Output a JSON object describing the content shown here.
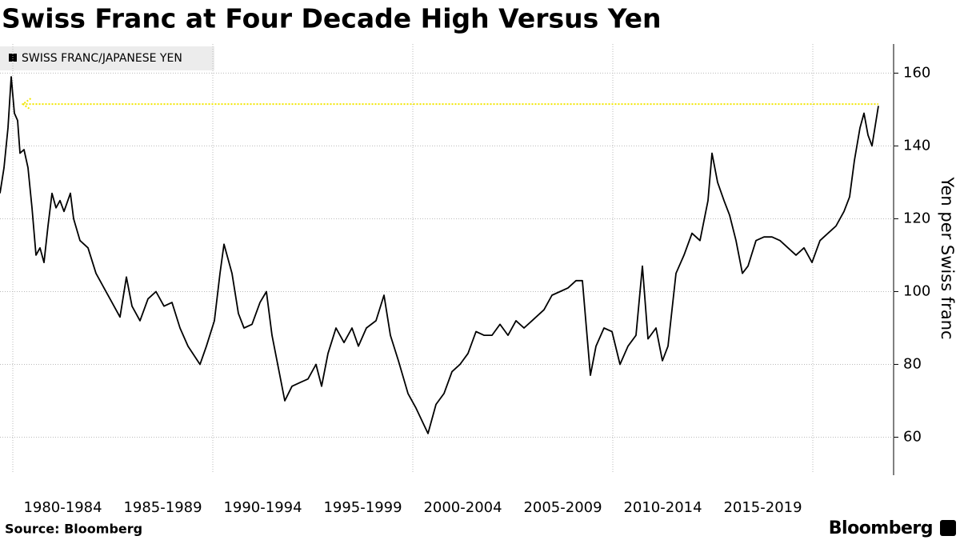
{
  "chart_data": {
    "type": "line",
    "title": "Swiss Franc at Four Decade High Versus Yen",
    "ylabel": "Yen per Swiss franc",
    "source": "Source: Bloomberg",
    "brand": "Bloomberg",
    "legend": "top-left",
    "grid": true,
    "xlim": [
      1979.36,
      2024.04
    ],
    "ylim": [
      50,
      168
    ],
    "yticks": [
      60,
      80,
      100,
      120,
      140,
      160
    ],
    "xgrid": [
      1980,
      1990,
      2000,
      2010,
      2020
    ],
    "xticks": [
      {
        "value": 1982.5,
        "label": "1980-1984"
      },
      {
        "value": 1987.5,
        "label": "1985-1989"
      },
      {
        "value": 1992.5,
        "label": "1990-1994"
      },
      {
        "value": 1997.5,
        "label": "1995-1999"
      },
      {
        "value": 2002.5,
        "label": "2000-2004"
      },
      {
        "value": 2007.5,
        "label": "2005-2009"
      },
      {
        "value": 2012.5,
        "label": "2010-2014"
      },
      {
        "value": 2017.5,
        "label": "2015-2019"
      }
    ],
    "reference_line": {
      "value": 151.5,
      "x": [
        1980.5,
        2023.28
      ],
      "color": "#f2e600"
    },
    "x": [
      1979.36,
      1979.56,
      1979.76,
      1979.92,
      1980.08,
      1980.24,
      1980.36,
      1980.56,
      1980.76,
      1980.96,
      1981.16,
      1981.36,
      1981.56,
      1981.76,
      1981.96,
      1982.16,
      1982.36,
      1982.56,
      1982.88,
      1983.04,
      1983.36,
      1983.76,
      1984.16,
      1984.56,
      1984.96,
      1985.36,
      1985.68,
      1985.96,
      1986.36,
      1986.76,
      1987.16,
      1987.56,
      1987.96,
      1988.36,
      1988.76,
      1989.36,
      1989.68,
      1990.08,
      1990.36,
      1990.56,
      1990.96,
      1991.28,
      1991.56,
      1991.96,
      1992.36,
      1992.68,
      1992.96,
      1993.28,
      1993.6,
      1993.96,
      1994.36,
      1994.76,
      1995.16,
      1995.44,
      1995.76,
      1996.16,
      1996.56,
      1996.96,
      1997.28,
      1997.68,
      1998.16,
      1998.56,
      1998.88,
      1999.28,
      1999.76,
      2000.16,
      2000.76,
      2001.16,
      2001.56,
      2001.96,
      2002.36,
      2002.76,
      2003.16,
      2003.56,
      2003.96,
      2004.36,
      2004.76,
      2005.16,
      2005.56,
      2005.96,
      2006.56,
      2006.96,
      2007.36,
      2007.76,
      2008.16,
      2008.48,
      2008.68,
      2008.88,
      2009.16,
      2009.56,
      2009.96,
      2010.36,
      2010.76,
      2011.16,
      2011.48,
      2011.76,
      2012.16,
      2012.48,
      2012.76,
      2013.16,
      2013.56,
      2013.96,
      2014.36,
      2014.76,
      2014.96,
      2015.24,
      2015.56,
      2015.84,
      2016.16,
      2016.48,
      2016.76,
      2017.16,
      2017.56,
      2017.96,
      2018.36,
      2018.76,
      2019.16,
      2019.56,
      2019.96,
      2020.36,
      2020.76,
      2021.16,
      2021.56,
      2021.84,
      2022.08,
      2022.36,
      2022.56,
      2022.76,
      2022.96,
      2023.28
    ],
    "series": [
      {
        "name": "SWISS FRANC/JAPANESE YEN",
        "color": "#000000",
        "values": [
          127,
          134,
          145,
          159,
          149,
          147,
          138,
          139,
          134,
          123,
          110,
          112,
          108,
          118,
          127,
          123,
          125,
          122,
          127,
          120,
          114,
          112,
          105,
          101,
          97,
          93,
          104,
          96,
          92,
          98,
          100,
          96,
          97,
          90,
          85,
          80,
          85,
          92,
          105,
          113,
          105,
          94,
          90,
          91,
          97,
          100,
          88,
          79,
          70,
          74,
          75,
          76,
          80,
          74,
          83,
          90,
          86,
          90,
          85,
          90,
          92,
          99,
          88,
          81,
          72,
          68,
          61,
          69,
          72,
          78,
          80,
          83,
          89,
          88,
          88,
          91,
          88,
          92,
          90,
          92,
          95,
          99,
          100,
          101,
          103,
          103,
          90,
          77,
          85,
          90,
          89,
          80,
          85,
          88,
          107,
          87,
          90,
          81,
          85,
          105,
          110,
          116,
          114,
          125,
          138,
          130,
          125,
          121,
          114,
          105,
          107,
          114,
          115,
          115,
          114,
          112,
          110,
          112,
          108,
          114,
          116,
          118,
          122,
          126,
          136,
          145,
          149,
          143,
          140,
          151
        ]
      }
    ]
  }
}
